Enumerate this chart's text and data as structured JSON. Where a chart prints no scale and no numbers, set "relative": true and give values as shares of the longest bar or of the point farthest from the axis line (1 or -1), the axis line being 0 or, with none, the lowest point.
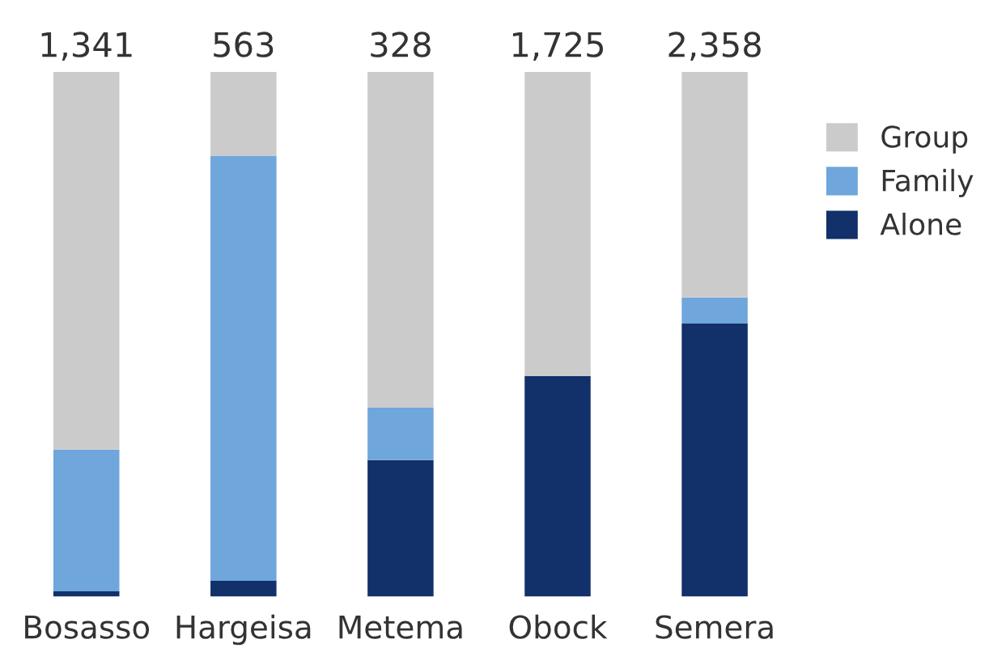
{
  "chart_data": {
    "type": "bar",
    "stacked": true,
    "relative": true,
    "categories": [
      "Bosasso",
      "Hargeisa",
      "Metema",
      "Obock",
      "Semera"
    ],
    "series": [
      {
        "name": "Alone",
        "color": "#12306a",
        "values": [
          0.01,
          0.03,
          0.26,
          0.42,
          0.52
        ]
      },
      {
        "name": "Family",
        "color": "#6fa6dc",
        "values": [
          0.27,
          0.81,
          0.1,
          0.0,
          0.05
        ]
      },
      {
        "name": "Group",
        "color": "#cbcbcb",
        "values": [
          0.72,
          0.16,
          0.64,
          0.58,
          0.43
        ]
      }
    ],
    "annotations": [
      "1,341",
      "563",
      "328",
      "1,725",
      "2,358"
    ],
    "legend": "right",
    "grid": false
  }
}
